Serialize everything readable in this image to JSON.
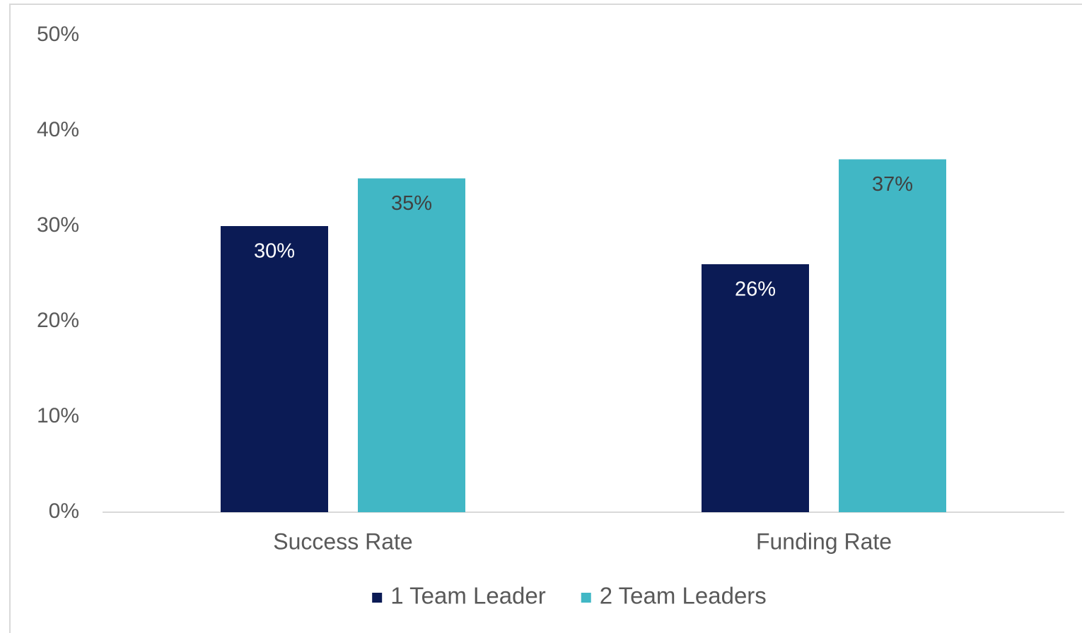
{
  "chart_data": {
    "type": "bar",
    "categories": [
      "Success Rate",
      "Funding Rate"
    ],
    "series": [
      {
        "name": "1 Team Leader",
        "color": "#0b1b55",
        "values": [
          30,
          26
        ],
        "value_labels": [
          "30%",
          "26%"
        ]
      },
      {
        "name": "2 Team Leaders",
        "color": "#41b7c5",
        "values": [
          35,
          37
        ],
        "value_labels": [
          "35%",
          "37%"
        ]
      }
    ],
    "ylim": [
      0,
      50
    ],
    "yticks": [
      {
        "value": 0,
        "label": "0%"
      },
      {
        "value": 10,
        "label": "10%"
      },
      {
        "value": 20,
        "label": "20%"
      },
      {
        "value": 30,
        "label": "30%"
      },
      {
        "value": 40,
        "label": "40%"
      },
      {
        "value": 50,
        "label": "50%"
      }
    ],
    "grid": false,
    "legend": "bottom"
  }
}
